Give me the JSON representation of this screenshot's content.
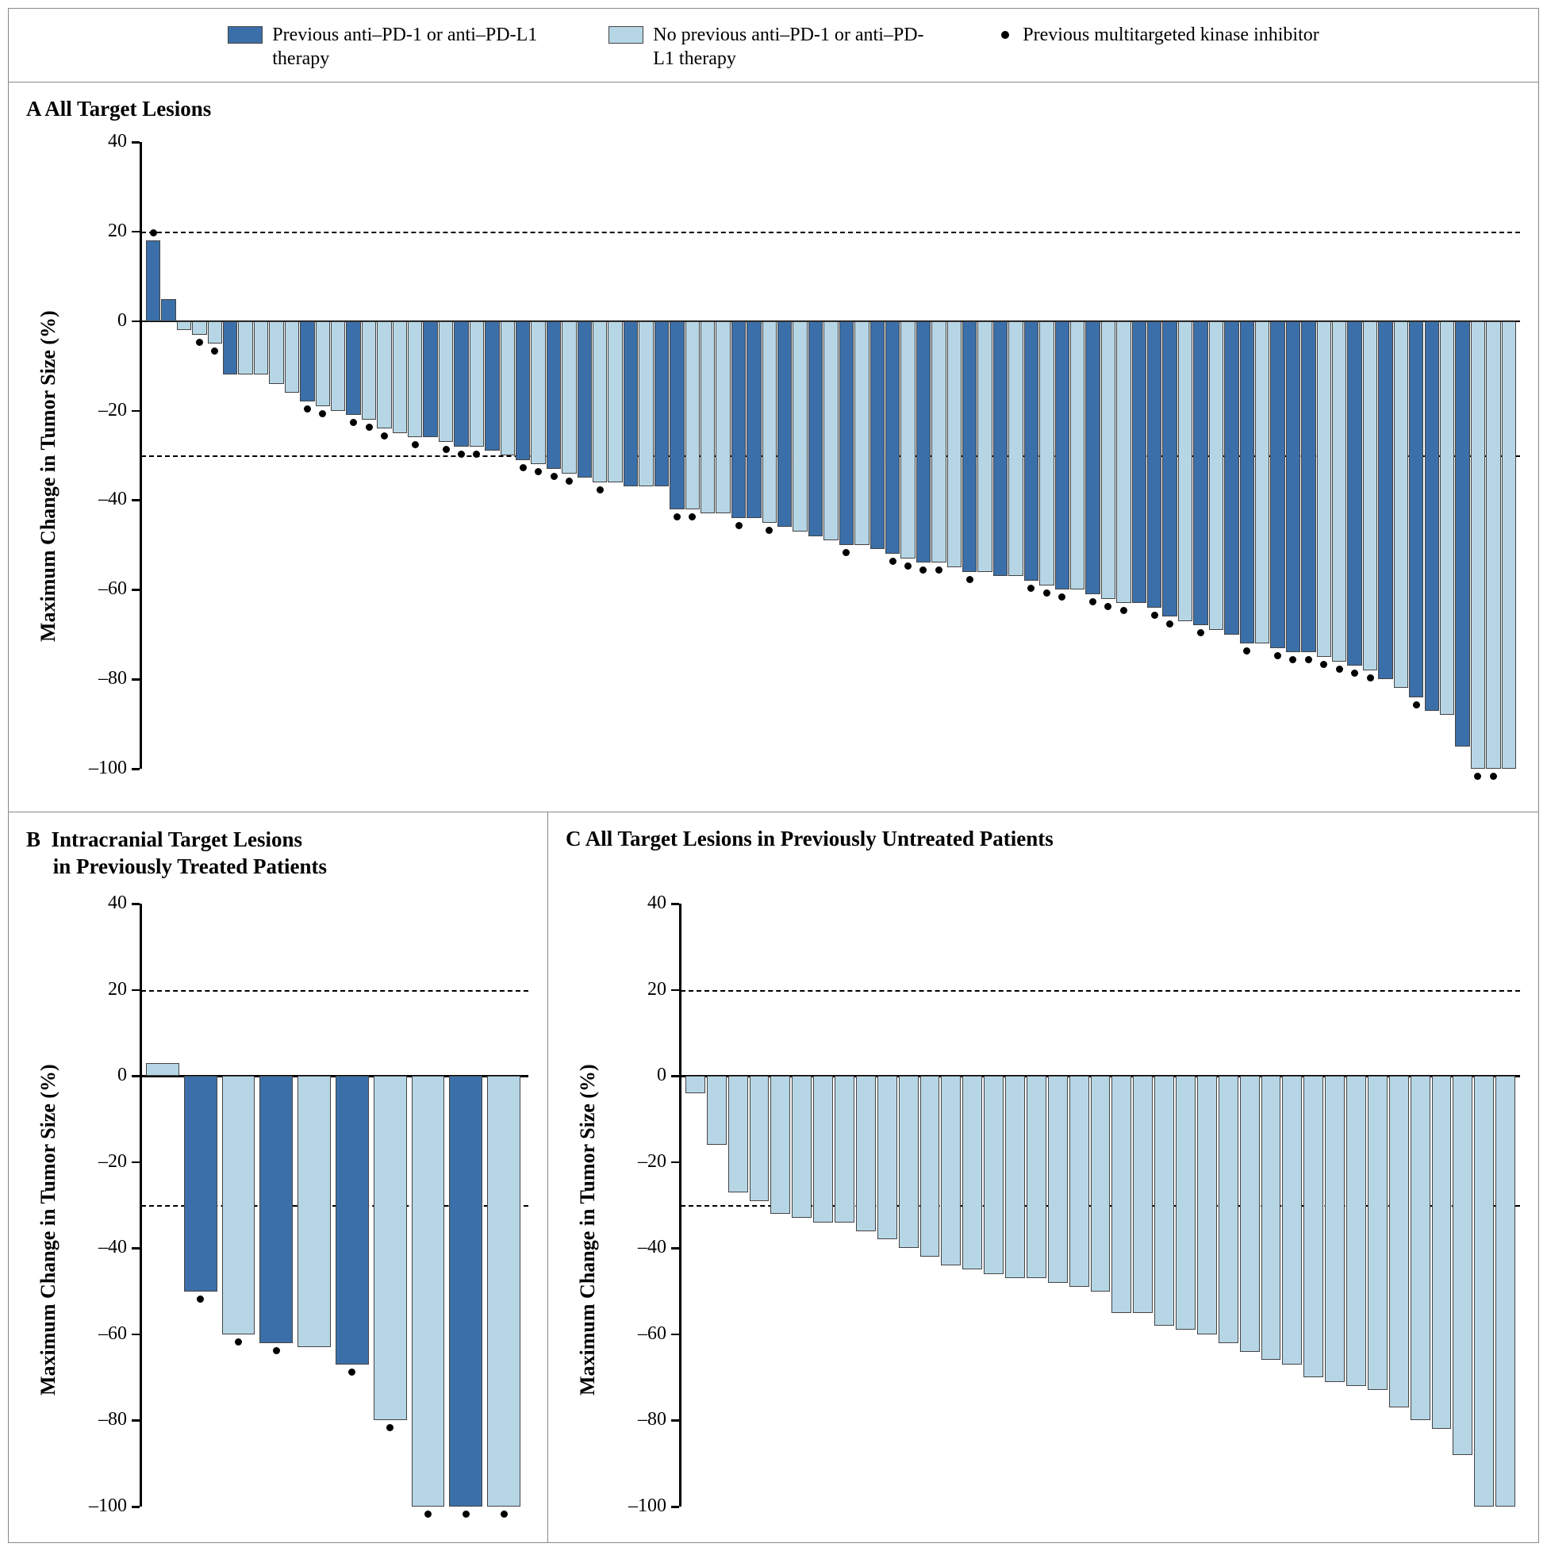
{
  "colors": {
    "dark": "#3b6fa9",
    "light": "#b6d6e6",
    "barStroke": "#444444",
    "axis": "#000000"
  },
  "legend": {
    "item1": "Previous anti–PD-1 or anti–PD-L1 therapy",
    "item2": "No previous anti–PD-1 or anti–PD-L1 therapy",
    "item3": "Previous multitargeted kinase inhibitor"
  },
  "panelA": {
    "title": "A  All Target Lesions",
    "ylabel": "Maximum Change in Tumor Size (%)",
    "ylim": [
      -100,
      40
    ],
    "yticks": [
      -100,
      -80,
      -60,
      -40,
      -20,
      0,
      20,
      40
    ],
    "reflines": [
      20,
      -30
    ],
    "bars": [
      {
        "v": 18,
        "c": "dark",
        "m": 1
      },
      {
        "v": 5,
        "c": "dark",
        "m": 0
      },
      {
        "v": -2,
        "c": "light",
        "m": 0
      },
      {
        "v": -3,
        "c": "light",
        "m": 1
      },
      {
        "v": -5,
        "c": "light",
        "m": 1
      },
      {
        "v": -12,
        "c": "dark",
        "m": 0
      },
      {
        "v": -12,
        "c": "light",
        "m": 0
      },
      {
        "v": -12,
        "c": "light",
        "m": 0
      },
      {
        "v": -14,
        "c": "light",
        "m": 0
      },
      {
        "v": -16,
        "c": "light",
        "m": 0
      },
      {
        "v": -18,
        "c": "dark",
        "m": 1
      },
      {
        "v": -19,
        "c": "light",
        "m": 1
      },
      {
        "v": -20,
        "c": "light",
        "m": 0
      },
      {
        "v": -21,
        "c": "dark",
        "m": 1
      },
      {
        "v": -22,
        "c": "light",
        "m": 1
      },
      {
        "v": -24,
        "c": "light",
        "m": 1
      },
      {
        "v": -25,
        "c": "light",
        "m": 0
      },
      {
        "v": -26,
        "c": "light",
        "m": 1
      },
      {
        "v": -26,
        "c": "dark",
        "m": 0
      },
      {
        "v": -27,
        "c": "light",
        "m": 1
      },
      {
        "v": -28,
        "c": "dark",
        "m": 1
      },
      {
        "v": -28,
        "c": "light",
        "m": 1
      },
      {
        "v": -29,
        "c": "dark",
        "m": 0
      },
      {
        "v": -30,
        "c": "light",
        "m": 0
      },
      {
        "v": -31,
        "c": "dark",
        "m": 1
      },
      {
        "v": -32,
        "c": "light",
        "m": 1
      },
      {
        "v": -33,
        "c": "dark",
        "m": 1
      },
      {
        "v": -34,
        "c": "light",
        "m": 1
      },
      {
        "v": -35,
        "c": "dark",
        "m": 0
      },
      {
        "v": -36,
        "c": "light",
        "m": 1
      },
      {
        "v": -36,
        "c": "light",
        "m": 0
      },
      {
        "v": -37,
        "c": "dark",
        "m": 0
      },
      {
        "v": -37,
        "c": "light",
        "m": 0
      },
      {
        "v": -37,
        "c": "dark",
        "m": 0
      },
      {
        "v": -42,
        "c": "dark",
        "m": 1
      },
      {
        "v": -42,
        "c": "light",
        "m": 1
      },
      {
        "v": -43,
        "c": "light",
        "m": 0
      },
      {
        "v": -43,
        "c": "light",
        "m": 0
      },
      {
        "v": -44,
        "c": "dark",
        "m": 1
      },
      {
        "v": -44,
        "c": "dark",
        "m": 0
      },
      {
        "v": -45,
        "c": "light",
        "m": 1
      },
      {
        "v": -46,
        "c": "dark",
        "m": 0
      },
      {
        "v": -47,
        "c": "light",
        "m": 0
      },
      {
        "v": -48,
        "c": "dark",
        "m": 0
      },
      {
        "v": -49,
        "c": "light",
        "m": 0
      },
      {
        "v": -50,
        "c": "dark",
        "m": 1
      },
      {
        "v": -50,
        "c": "light",
        "m": 0
      },
      {
        "v": -51,
        "c": "dark",
        "m": 0
      },
      {
        "v": -52,
        "c": "dark",
        "m": 1
      },
      {
        "v": -53,
        "c": "light",
        "m": 1
      },
      {
        "v": -54,
        "c": "dark",
        "m": 1
      },
      {
        "v": -54,
        "c": "light",
        "m": 1
      },
      {
        "v": -55,
        "c": "light",
        "m": 0
      },
      {
        "v": -56,
        "c": "dark",
        "m": 1
      },
      {
        "v": -56,
        "c": "light",
        "m": 0
      },
      {
        "v": -57,
        "c": "dark",
        "m": 0
      },
      {
        "v": -57,
        "c": "light",
        "m": 0
      },
      {
        "v": -58,
        "c": "dark",
        "m": 1
      },
      {
        "v": -59,
        "c": "light",
        "m": 1
      },
      {
        "v": -60,
        "c": "dark",
        "m": 1
      },
      {
        "v": -60,
        "c": "light",
        "m": 0
      },
      {
        "v": -61,
        "c": "dark",
        "m": 1
      },
      {
        "v": -62,
        "c": "light",
        "m": 1
      },
      {
        "v": -63,
        "c": "light",
        "m": 1
      },
      {
        "v": -63,
        "c": "dark",
        "m": 0
      },
      {
        "v": -64,
        "c": "dark",
        "m": 1
      },
      {
        "v": -66,
        "c": "dark",
        "m": 1
      },
      {
        "v": -67,
        "c": "light",
        "m": 0
      },
      {
        "v": -68,
        "c": "dark",
        "m": 1
      },
      {
        "v": -69,
        "c": "light",
        "m": 0
      },
      {
        "v": -70,
        "c": "dark",
        "m": 0
      },
      {
        "v": -72,
        "c": "dark",
        "m": 1
      },
      {
        "v": -72,
        "c": "light",
        "m": 0
      },
      {
        "v": -73,
        "c": "dark",
        "m": 1
      },
      {
        "v": -74,
        "c": "dark",
        "m": 1
      },
      {
        "v": -74,
        "c": "dark",
        "m": 1
      },
      {
        "v": -75,
        "c": "light",
        "m": 1
      },
      {
        "v": -76,
        "c": "light",
        "m": 1
      },
      {
        "v": -77,
        "c": "dark",
        "m": 1
      },
      {
        "v": -78,
        "c": "light",
        "m": 1
      },
      {
        "v": -80,
        "c": "dark",
        "m": 0
      },
      {
        "v": -82,
        "c": "light",
        "m": 0
      },
      {
        "v": -84,
        "c": "dark",
        "m": 1
      },
      {
        "v": -87,
        "c": "dark",
        "m": 0
      },
      {
        "v": -88,
        "c": "light",
        "m": 0
      },
      {
        "v": -95,
        "c": "dark",
        "m": 0
      },
      {
        "v": -100,
        "c": "light",
        "m": 1
      },
      {
        "v": -100,
        "c": "light",
        "m": 1
      },
      {
        "v": -100,
        "c": "light",
        "m": 0
      }
    ]
  },
  "panelB": {
    "title": "B  Intracranial Target Lesions in Previously Treated Patients",
    "ylabel": "Maximum Change in Tumor Size (%)",
    "ylim": [
      -100,
      40
    ],
    "yticks": [
      -100,
      -80,
      -60,
      -40,
      -20,
      0,
      20,
      40
    ],
    "reflines": [
      20,
      -30
    ],
    "bars": [
      {
        "v": 3,
        "c": "light",
        "m": 0
      },
      {
        "v": -50,
        "c": "dark",
        "m": 1
      },
      {
        "v": -60,
        "c": "light",
        "m": 1
      },
      {
        "v": -62,
        "c": "dark",
        "m": 1
      },
      {
        "v": -63,
        "c": "light",
        "m": 0
      },
      {
        "v": -67,
        "c": "dark",
        "m": 1
      },
      {
        "v": -80,
        "c": "light",
        "m": 1
      },
      {
        "v": -100,
        "c": "light",
        "m": 1
      },
      {
        "v": -100,
        "c": "dark",
        "m": 1
      },
      {
        "v": -100,
        "c": "light",
        "m": 1
      }
    ]
  },
  "panelC": {
    "title": "C  All Target Lesions in Previously Untreated Patients",
    "ylabel": "Maximum Change in Tumor Size (%)",
    "ylim": [
      -100,
      40
    ],
    "yticks": [
      -100,
      -80,
      -60,
      -40,
      -20,
      0,
      20,
      40
    ],
    "reflines": [
      20,
      -30
    ],
    "bars": [
      {
        "v": -4,
        "c": "light",
        "m": 0
      },
      {
        "v": -16,
        "c": "light",
        "m": 0
      },
      {
        "v": -27,
        "c": "light",
        "m": 0
      },
      {
        "v": -29,
        "c": "light",
        "m": 0
      },
      {
        "v": -32,
        "c": "light",
        "m": 0
      },
      {
        "v": -33,
        "c": "light",
        "m": 0
      },
      {
        "v": -34,
        "c": "light",
        "m": 0
      },
      {
        "v": -34,
        "c": "light",
        "m": 0
      },
      {
        "v": -36,
        "c": "light",
        "m": 0
      },
      {
        "v": -38,
        "c": "light",
        "m": 0
      },
      {
        "v": -40,
        "c": "light",
        "m": 0
      },
      {
        "v": -42,
        "c": "light",
        "m": 0
      },
      {
        "v": -44,
        "c": "light",
        "m": 0
      },
      {
        "v": -45,
        "c": "light",
        "m": 0
      },
      {
        "v": -46,
        "c": "light",
        "m": 0
      },
      {
        "v": -47,
        "c": "light",
        "m": 0
      },
      {
        "v": -47,
        "c": "light",
        "m": 0
      },
      {
        "v": -48,
        "c": "light",
        "m": 0
      },
      {
        "v": -49,
        "c": "light",
        "m": 0
      },
      {
        "v": -50,
        "c": "light",
        "m": 0
      },
      {
        "v": -55,
        "c": "light",
        "m": 0
      },
      {
        "v": -55,
        "c": "light",
        "m": 0
      },
      {
        "v": -58,
        "c": "light",
        "m": 0
      },
      {
        "v": -59,
        "c": "light",
        "m": 0
      },
      {
        "v": -60,
        "c": "light",
        "m": 0
      },
      {
        "v": -62,
        "c": "light",
        "m": 0
      },
      {
        "v": -64,
        "c": "light",
        "m": 0
      },
      {
        "v": -66,
        "c": "light",
        "m": 0
      },
      {
        "v": -67,
        "c": "light",
        "m": 0
      },
      {
        "v": -70,
        "c": "light",
        "m": 0
      },
      {
        "v": -71,
        "c": "light",
        "m": 0
      },
      {
        "v": -72,
        "c": "light",
        "m": 0
      },
      {
        "v": -73,
        "c": "light",
        "m": 0
      },
      {
        "v": -77,
        "c": "light",
        "m": 0
      },
      {
        "v": -80,
        "c": "light",
        "m": 0
      },
      {
        "v": -82,
        "c": "light",
        "m": 0
      },
      {
        "v": -88,
        "c": "light",
        "m": 0
      },
      {
        "v": -100,
        "c": "light",
        "m": 0
      },
      {
        "v": -100,
        "c": "light",
        "m": 0
      }
    ]
  }
}
